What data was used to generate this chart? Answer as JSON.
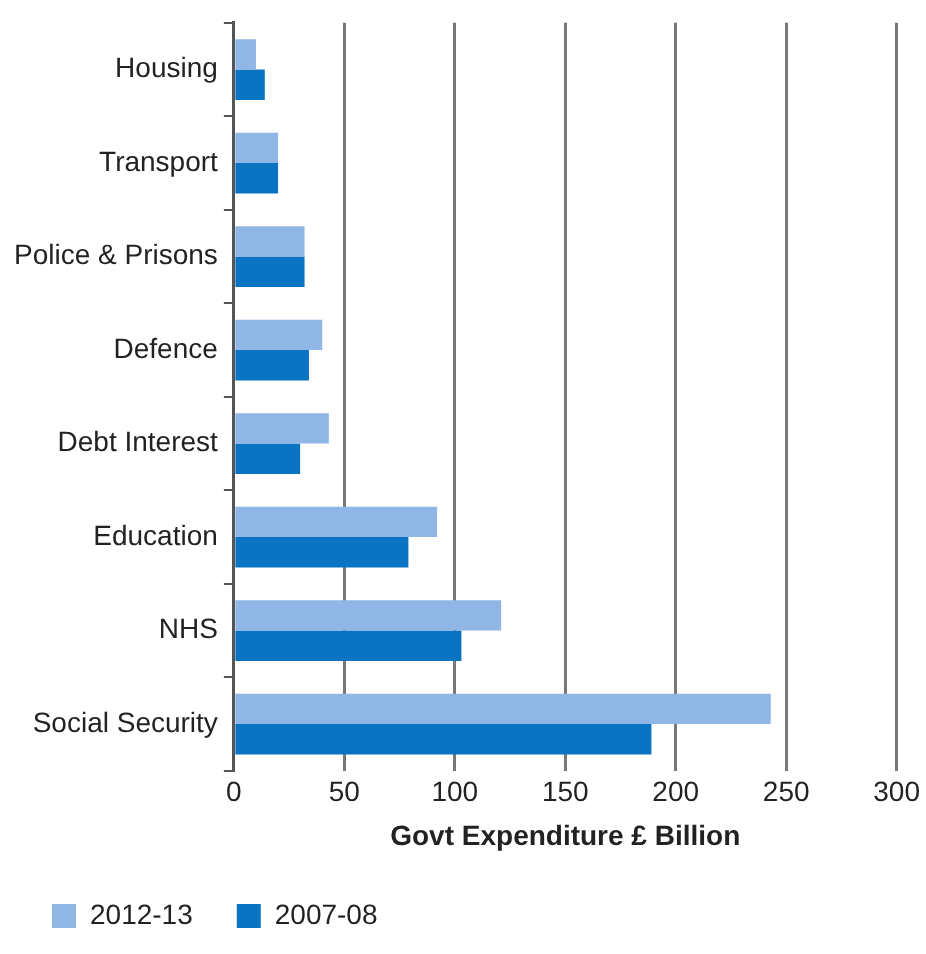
{
  "chart_data": {
    "type": "bar",
    "orientation": "horizontal",
    "xlabel": "Govt Expenditure £ Billion",
    "categories": [
      "Housing",
      "Transport",
      "Police & Prisons",
      "Defence",
      "Debt Interest",
      "Education",
      "NHS",
      "Social Security"
    ],
    "series": [
      {
        "name": "2012-13",
        "color": "#8fb6e4",
        "values": [
          10,
          20,
          32,
          40,
          43,
          92,
          121,
          243
        ]
      },
      {
        "name": "2007-08",
        "color": "#0a74c2",
        "values": [
          14,
          20,
          32,
          34,
          30,
          79,
          103,
          189
        ]
      }
    ],
    "xlim": [
      0,
      300
    ],
    "xticks": [
      0,
      50,
      100,
      150,
      200,
      250,
      300
    ],
    "grid": "x",
    "legend": "bottom left"
  }
}
